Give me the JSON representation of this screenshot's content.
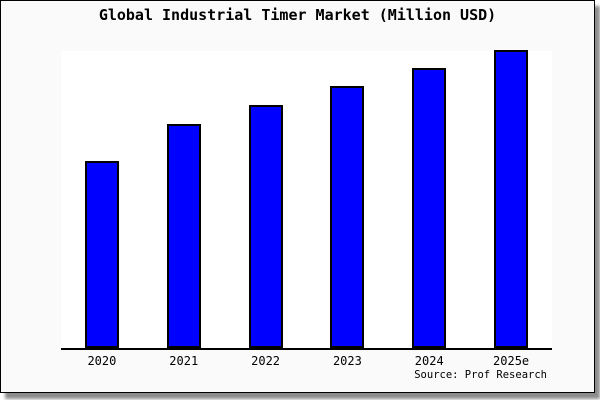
{
  "window": {
    "background_color": "#fafafa",
    "frame_border_color": "#000000"
  },
  "source_note": "Source: Prof Research",
  "chart_data": {
    "type": "bar",
    "title": "Global Industrial Timer Market (Million USD)",
    "categories": [
      "2020",
      "2021",
      "2022",
      "2023",
      "2024",
      "2025e"
    ],
    "values": [
      187,
      224,
      243,
      262,
      280,
      298
    ],
    "values_note": "No y-axis scale or data labels are shown in the image; values are proportional bar heights (relative units measured from the plot).",
    "xlabel": "",
    "ylabel": "",
    "ylim": [
      0,
      299
    ],
    "grid": false,
    "legend": null,
    "bar_color": "#0000ff",
    "bar_border_color": "#000000",
    "plot_background": "#ffffff",
    "axis_color": "#000000",
    "source": "Source: Prof Research"
  }
}
